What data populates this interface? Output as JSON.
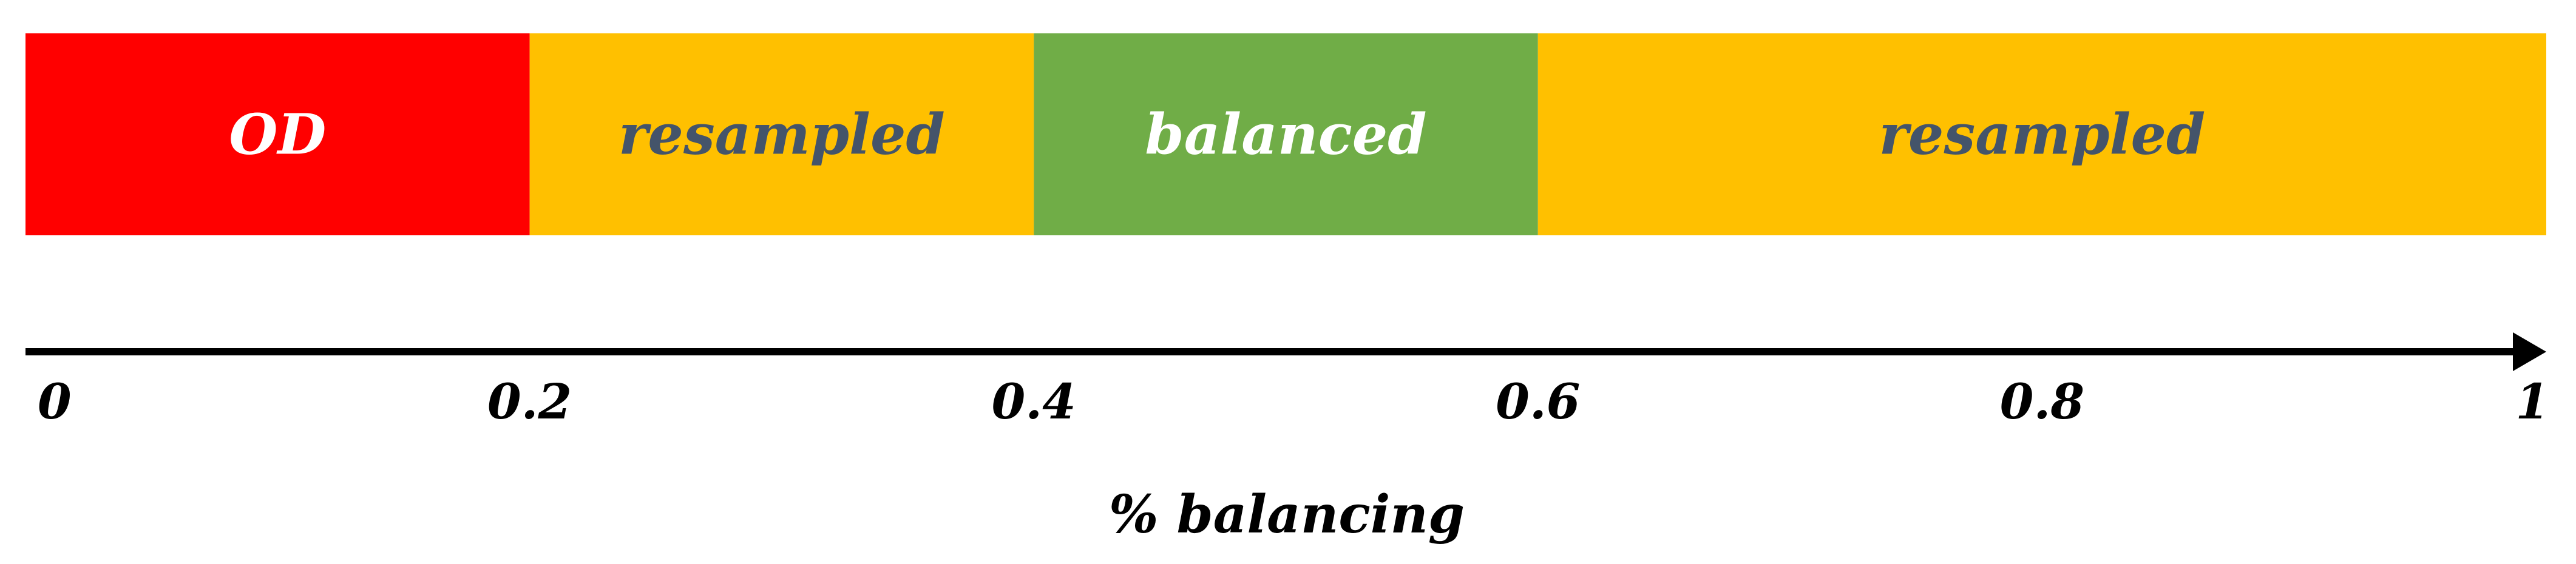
{
  "diagram": {
    "type": "segmented-scale",
    "segments": [
      {
        "label": "OD",
        "start": 0.0,
        "end": 0.2,
        "fill": "#FF0000",
        "text_color": "#FFFFFF"
      },
      {
        "label": "resampled",
        "start": 0.2,
        "end": 0.4,
        "fill": "#FFC000",
        "text_color": "#44546A"
      },
      {
        "label": "balanced",
        "start": 0.4,
        "end": 0.6,
        "fill": "#70AD47",
        "text_color": "#FFFFFF"
      },
      {
        "label": "resampled",
        "start": 0.6,
        "end": 1.0,
        "fill": "#FFC000",
        "text_color": "#44546A"
      }
    ],
    "axis": {
      "range": [
        0,
        1
      ],
      "ticks": [
        {
          "value": 0,
          "label": "0"
        },
        {
          "value": 0.2,
          "label": "0.2"
        },
        {
          "value": 0.4,
          "label": "0.4"
        },
        {
          "value": 0.6,
          "label": "0.6"
        },
        {
          "value": 0.8,
          "label": "0.8"
        },
        {
          "value": 1,
          "label": "1"
        }
      ],
      "label": "% balancing",
      "arrow_color": "#000000"
    }
  }
}
